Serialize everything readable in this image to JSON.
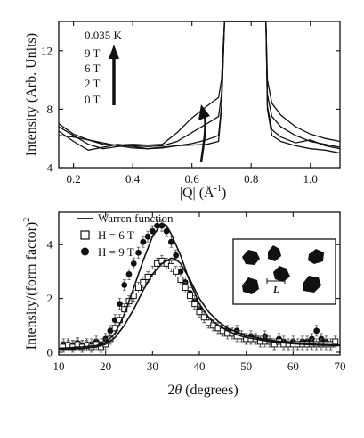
{
  "chart_data": [
    {
      "type": "line",
      "xlabel": "|Q| (Å⁻¹)",
      "xlabel_parts": [
        "|Q|",
        "(",
        "Å",
        "-1",
        ")"
      ],
      "ylabel": "Intensity (Arb. Units)",
      "xlim": [
        0.15,
        1.1
      ],
      "ylim": [
        4,
        14
      ],
      "xticks": [
        0.2,
        0.4,
        0.6,
        0.8,
        1.0
      ],
      "xtick_labels": [
        "0.2",
        "0.4",
        "0.6",
        "0.8",
        "1.0"
      ],
      "yticks": [
        4,
        8,
        12
      ],
      "ytick_labels": [
        "4",
        "8",
        "12"
      ],
      "legend": [
        "0.035 K",
        "9 T",
        "6 T",
        "2 T",
        "0 T"
      ],
      "annotation": "arrow indicating increasing field",
      "series": [
        {
          "name": "0 T",
          "x": [
            0.15,
            0.2,
            0.25,
            0.3,
            0.35,
            0.4,
            0.45,
            0.5,
            0.55,
            0.6,
            0.65,
            0.69,
            0.7,
            0.71,
            0.85,
            0.855,
            0.87,
            0.9,
            0.95,
            1.0,
            1.05,
            1.1
          ],
          "y": [
            6.2,
            6.1,
            5.9,
            5.7,
            5.5,
            5.35,
            5.3,
            5.4,
            5.5,
            5.55,
            5.6,
            5.8,
            8.0,
            14.0,
            14.0,
            8.0,
            6.2,
            5.8,
            5.5,
            5.3,
            5.2,
            5.0
          ]
        },
        {
          "name": "2 T",
          "x": [
            0.15,
            0.2,
            0.25,
            0.3,
            0.35,
            0.4,
            0.45,
            0.5,
            0.55,
            0.6,
            0.65,
            0.69,
            0.7,
            0.71,
            0.85,
            0.855,
            0.87,
            0.9,
            0.95,
            1.0,
            1.05,
            1.1
          ],
          "y": [
            6.5,
            5.8,
            5.2,
            5.4,
            5.6,
            5.45,
            5.3,
            5.35,
            5.5,
            5.65,
            5.9,
            6.2,
            8.2,
            14.0,
            14.0,
            8.2,
            6.6,
            6.1,
            5.7,
            5.9,
            5.5,
            5.3
          ]
        },
        {
          "name": "6 T",
          "x": [
            0.15,
            0.2,
            0.25,
            0.3,
            0.35,
            0.4,
            0.45,
            0.5,
            0.55,
            0.6,
            0.65,
            0.69,
            0.7,
            0.71,
            0.85,
            0.855,
            0.87,
            0.9,
            0.95,
            1.0,
            1.05,
            1.1
          ],
          "y": [
            6.8,
            6.2,
            5.6,
            5.3,
            5.45,
            5.5,
            5.45,
            5.5,
            5.8,
            6.4,
            7.0,
            7.5,
            9.0,
            14.0,
            14.0,
            9.0,
            7.5,
            6.8,
            6.2,
            5.8,
            5.6,
            5.4
          ]
        },
        {
          "name": "9 T",
          "x": [
            0.15,
            0.2,
            0.25,
            0.3,
            0.35,
            0.4,
            0.45,
            0.5,
            0.55,
            0.6,
            0.65,
            0.69,
            0.7,
            0.71,
            0.85,
            0.855,
            0.87,
            0.9,
            0.95,
            1.0,
            1.05,
            1.1
          ],
          "y": [
            7.0,
            6.3,
            5.9,
            5.6,
            5.55,
            5.6,
            5.55,
            5.6,
            6.4,
            7.4,
            8.2,
            8.8,
            10.0,
            14.0,
            14.0,
            10.0,
            8.4,
            7.6,
            6.8,
            6.3,
            6.0,
            5.8
          ]
        }
      ]
    },
    {
      "type": "scatter",
      "xlabel": "2θ (degrees)",
      "xlabel_parts": [
        "2",
        "θ",
        " (degrees)"
      ],
      "ylabel": "Intensity/(form factor)²",
      "ylabel_parts": [
        "Intensity/(form factor)",
        "2"
      ],
      "xlim": [
        10,
        70
      ],
      "ylim": [
        -0.1,
        5.2
      ],
      "xticks": [
        10,
        20,
        30,
        40,
        50,
        60,
        70
      ],
      "xtick_labels": [
        "10",
        "20",
        "30",
        "40",
        "50",
        "60",
        "70"
      ],
      "yticks": [
        0,
        2,
        4
      ],
      "ytick_labels": [
        "0",
        "2",
        "4"
      ],
      "legend": [
        "Warren function",
        "H = 6 T",
        "H = 9 T"
      ],
      "inset_label": "L",
      "series": [
        {
          "name": "H = 9 T",
          "marker": "filled-circle",
          "x": [
            11,
            12,
            13,
            14,
            15,
            16,
            17,
            18,
            19,
            20,
            21,
            22,
            23,
            24,
            25,
            26,
            27,
            28,
            29,
            30,
            31,
            32,
            33,
            34,
            35,
            36,
            37,
            38,
            39,
            40,
            41,
            42,
            43,
            44,
            45,
            46,
            47,
            48,
            49,
            50,
            51,
            52,
            53,
            54,
            55,
            56,
            57,
            58,
            59,
            60,
            61,
            62,
            63,
            64,
            65,
            66,
            67,
            68,
            69
          ],
          "y": [
            0.3,
            0.3,
            0.25,
            0.35,
            0.25,
            0.3,
            0.3,
            0.4,
            0.3,
            0.5,
            0.8,
            1.2,
            1.8,
            2.5,
            2.9,
            3.3,
            3.7,
            4.1,
            4.3,
            4.5,
            4.7,
            4.7,
            4.5,
            4.1,
            3.6,
            3.0,
            2.6,
            2.2,
            1.9,
            1.6,
            1.3,
            1.1,
            1.0,
            0.9,
            0.8,
            0.8,
            0.7,
            0.8,
            0.6,
            0.5,
            0.6,
            0.5,
            0.4,
            0.6,
            0.4,
            0.3,
            0.5,
            0.4,
            0.3,
            0.4,
            0.3,
            0.4,
            0.4,
            0.5,
            0.8,
            0.5,
            0.4,
            0.3,
            0.4
          ],
          "error": 0.2
        },
        {
          "name": "H = 6 T",
          "marker": "open-square",
          "x": [
            11,
            12,
            13,
            14,
            15,
            16,
            17,
            18,
            19,
            20,
            21,
            22,
            23,
            24,
            25,
            26,
            27,
            28,
            29,
            30,
            31,
            32,
            33,
            34,
            35,
            36,
            37,
            38,
            39,
            40,
            41,
            42,
            43,
            44,
            45,
            46,
            47,
            48,
            49,
            50,
            51,
            52,
            53,
            54,
            55,
            56,
            57,
            58,
            59,
            60,
            61,
            62,
            63,
            64,
            65,
            66,
            67,
            68,
            69
          ],
          "y": [
            0.2,
            0.25,
            0.2,
            0.3,
            0.2,
            0.25,
            0.2,
            0.3,
            0.2,
            0.3,
            0.5,
            0.9,
            1.2,
            1.6,
            1.9,
            2.1,
            2.4,
            2.6,
            2.8,
            3.0,
            3.3,
            3.4,
            3.3,
            3.2,
            3.0,
            2.7,
            2.4,
            2.1,
            1.8,
            1.5,
            1.3,
            1.1,
            1.0,
            0.9,
            0.8,
            0.7,
            0.7,
            0.6,
            0.6,
            0.5,
            0.5,
            0.5,
            0.4,
            0.4,
            0.4,
            0.3,
            0.4,
            0.3,
            0.3,
            0.3,
            0.3,
            0.3,
            0.3,
            0.3,
            0.3,
            0.3,
            0.3,
            0.3,
            0.4
          ],
          "error": 0.2
        },
        {
          "name": "Warren function",
          "marker": "line",
          "x": [
            10,
            15,
            18,
            20,
            22,
            24,
            26,
            28,
            30,
            32,
            33,
            34,
            36,
            38,
            40,
            42,
            44,
            46,
            48,
            50,
            55,
            60,
            65,
            70
          ],
          "y": [
            0.15,
            0.2,
            0.25,
            0.35,
            0.7,
            1.4,
            2.4,
            3.4,
            4.3,
            4.8,
            4.7,
            4.4,
            3.6,
            2.6,
            1.8,
            1.3,
            1.0,
            0.8,
            0.65,
            0.55,
            0.4,
            0.32,
            0.27,
            0.25
          ]
        },
        {
          "name": "Warren function (6 T)",
          "marker": "line",
          "x": [
            10,
            15,
            18,
            20,
            22,
            24,
            26,
            28,
            30,
            32,
            34,
            35,
            36,
            38,
            40,
            42,
            44,
            46,
            48,
            50,
            55,
            60,
            65,
            70
          ],
          "y": [
            0.12,
            0.15,
            0.2,
            0.3,
            0.55,
            1.0,
            1.6,
            2.3,
            2.9,
            3.3,
            3.5,
            3.45,
            3.3,
            2.7,
            2.0,
            1.5,
            1.15,
            0.9,
            0.75,
            0.62,
            0.45,
            0.35,
            0.3,
            0.27
          ]
        }
      ]
    }
  ]
}
